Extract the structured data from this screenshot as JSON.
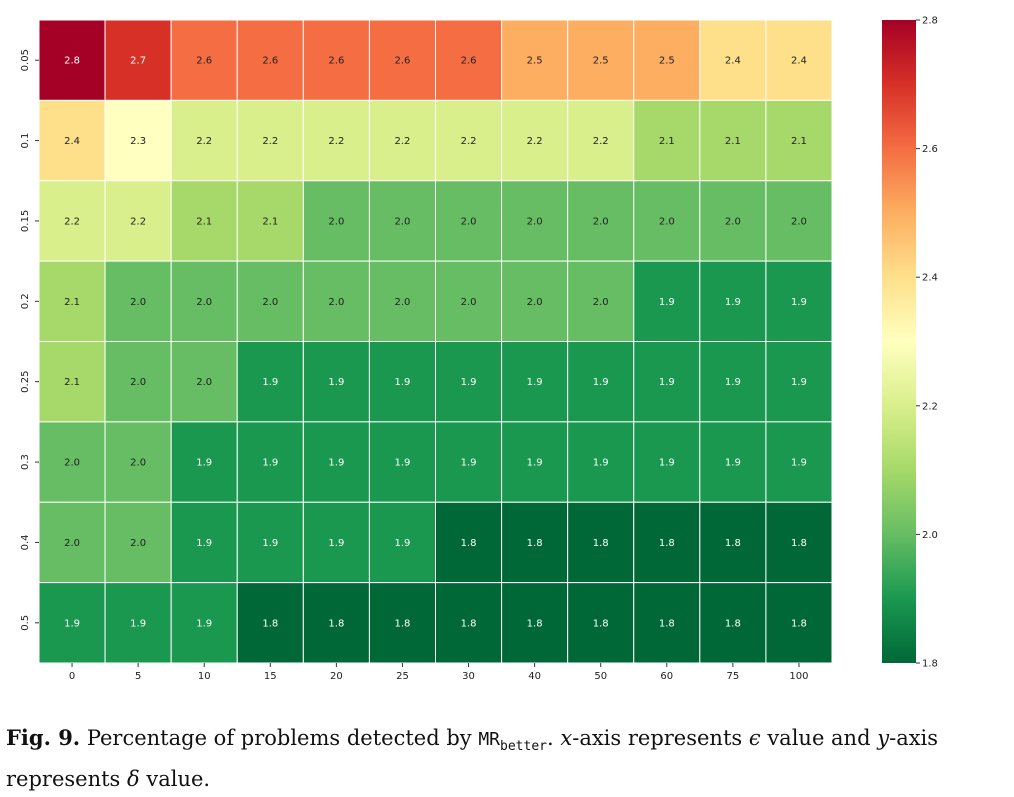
{
  "chart_data": {
    "type": "heatmap",
    "title": "",
    "xlabel": "",
    "ylabel": "",
    "x": [
      "0",
      "5",
      "10",
      "15",
      "20",
      "25",
      "30",
      "40",
      "50",
      "60",
      "75",
      "100"
    ],
    "y": [
      "0.05",
      "0.1",
      "0.15",
      "0.2",
      "0.25",
      "0.3",
      "0.4",
      "0.5"
    ],
    "values": [
      [
        2.8,
        2.7,
        2.6,
        2.6,
        2.6,
        2.6,
        2.6,
        2.5,
        2.5,
        2.5,
        2.4,
        2.4
      ],
      [
        2.4,
        2.3,
        2.2,
        2.2,
        2.2,
        2.2,
        2.2,
        2.2,
        2.2,
        2.1,
        2.1,
        2.1
      ],
      [
        2.2,
        2.2,
        2.1,
        2.1,
        2.0,
        2.0,
        2.0,
        2.0,
        2.0,
        2.0,
        2.0,
        2.0
      ],
      [
        2.1,
        2.0,
        2.0,
        2.0,
        2.0,
        2.0,
        2.0,
        2.0,
        2.0,
        1.9,
        1.9,
        1.9
      ],
      [
        2.1,
        2.0,
        2.0,
        1.9,
        1.9,
        1.9,
        1.9,
        1.9,
        1.9,
        1.9,
        1.9,
        1.9
      ],
      [
        2.0,
        2.0,
        1.9,
        1.9,
        1.9,
        1.9,
        1.9,
        1.9,
        1.9,
        1.9,
        1.9,
        1.9
      ],
      [
        2.0,
        2.0,
        1.9,
        1.9,
        1.9,
        1.9,
        1.8,
        1.8,
        1.8,
        1.8,
        1.8,
        1.8
      ],
      [
        1.9,
        1.9,
        1.9,
        1.8,
        1.8,
        1.8,
        1.8,
        1.8,
        1.8,
        1.8,
        1.8,
        1.8
      ]
    ],
    "colorbar": {
      "range": [
        1.8,
        2.8
      ],
      "ticks": [
        "1.8",
        "2.0",
        "2.2",
        "2.4",
        "2.6",
        "2.8"
      ],
      "colormap": "RdYlGn_r"
    },
    "grid": true,
    "legend": "right"
  },
  "caption": {
    "label": "Fig. 9.",
    "text_before": "Percentage of problems detected by",
    "mr_main": "MR",
    "mr_sub": "better",
    "text_after_1": ".",
    "x_var": "x",
    "text_after_2": "-axis represents",
    "eps": "ϵ",
    "text_after_3": "value and",
    "y_var": "y",
    "text_after_4": "-axis represents",
    "delta": "δ",
    "text_after_5": "value."
  }
}
